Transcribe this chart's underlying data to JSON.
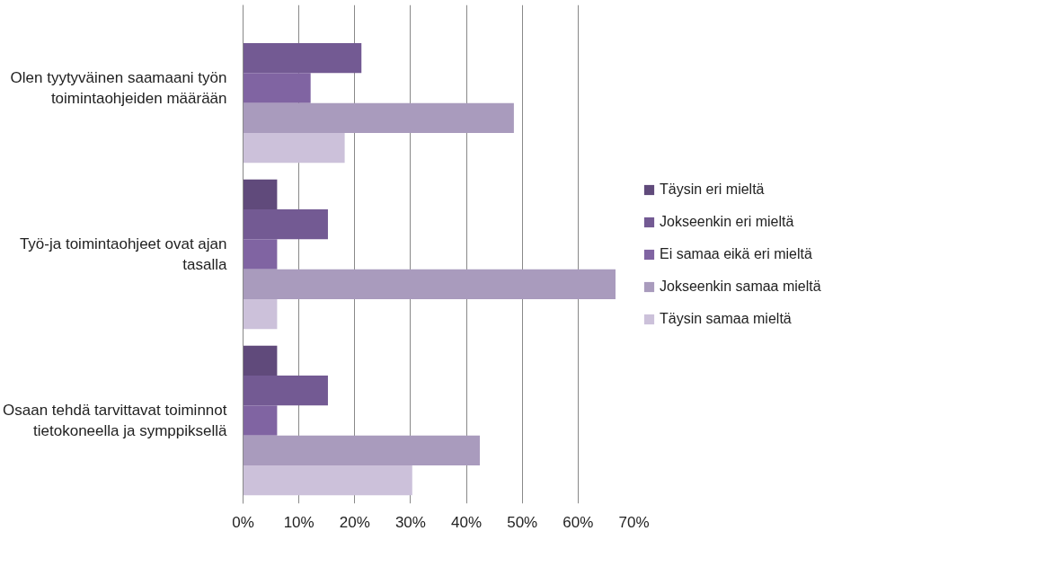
{
  "chart_data": {
    "type": "bar",
    "orientation": "horizontal",
    "categories": [
      "Olen tyytyväinen saamaani työn toimintaohjeiden määrään",
      "Työ-ja toimintaohjeet ovat ajan tasalla",
      "Osaan tehdä tarvittavat toiminnot tietokoneella ja symppiksellä"
    ],
    "series": [
      {
        "name": "Täysin eri mieltä",
        "color": "#604a7b",
        "values": [
          0,
          6.1,
          6.1
        ]
      },
      {
        "name": "Jokseenkin eri mieltä",
        "color": "#735a93",
        "values": [
          21.2,
          15.2,
          15.2
        ]
      },
      {
        "name": "Ei samaa eikä eri mieltä",
        "color": "#8064a2",
        "values": [
          12.1,
          6.1,
          6.1
        ]
      },
      {
        "name": "Jokseenkin samaa mieltä",
        "color": "#a99bbd",
        "values": [
          48.5,
          66.7,
          42.4
        ]
      },
      {
        "name": "Täysin samaa mieltä",
        "color": "#ccc1da",
        "values": [
          18.2,
          6.1,
          30.3
        ]
      }
    ],
    "xlim": [
      0,
      70
    ],
    "xticks": [
      {
        "value": 0,
        "label": "0%"
      },
      {
        "value": 10,
        "label": "10%"
      },
      {
        "value": 20,
        "label": "20%"
      },
      {
        "value": 30,
        "label": "30%"
      },
      {
        "value": 40,
        "label": "40%"
      },
      {
        "value": 50,
        "label": "50%"
      },
      {
        "value": 60,
        "label": "60%"
      },
      {
        "value": 70,
        "label": "70%"
      }
    ],
    "grid": "x",
    "legend": "right"
  }
}
